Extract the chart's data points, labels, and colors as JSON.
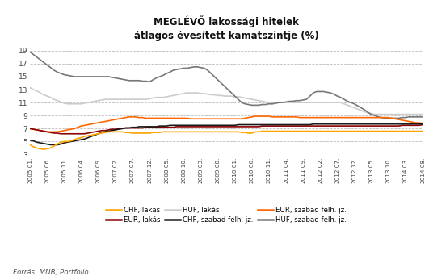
{
  "title_line1": "MEGLÉVŐ lakossági hitelek",
  "title_line2": "átlagos évesített kamatszintje (%)",
  "source": "Forrás: MNB, Portfolio",
  "ylim": [
    3,
    20
  ],
  "yticks": [
    3,
    5,
    7,
    9,
    11,
    13,
    15,
    17,
    19
  ],
  "background_color": "#ffffff",
  "grid_color": "#bbbbbb",
  "xtick_labels": [
    "2005.01.",
    "2005.06.",
    "2005.11.",
    "2006.04.",
    "2006.09.",
    "2007.02.",
    "2007.07.",
    "2007.12.",
    "2008.05.",
    "2008.10.",
    "2009.03.",
    "2009.08.",
    "2010.01.",
    "2010.06.",
    "2010.11.",
    "2011.04.",
    "2011.09.",
    "2012.02.",
    "2012.07.",
    "2012.12.",
    "2013.05.",
    "2013.10.",
    "2014.03.",
    "2014.08."
  ],
  "CHF_lakas_color": "#FFA500",
  "CHF_szabad_color": "#1a1a1a",
  "EUR_lakas_color": "#8B0000",
  "EUR_szabad_color": "#FF6600",
  "HUF_lakas_color": "#cccccc",
  "HUF_szabad_color": "#777777",
  "CHF_lakas": [
    4.5,
    4.2,
    4.0,
    3.9,
    3.8,
    3.9,
    4.0,
    4.3,
    4.6,
    4.9,
    5.0,
    5.0,
    5.1,
    5.3,
    5.5,
    5.6,
    5.8,
    5.9,
    6.0,
    6.1,
    6.2,
    6.3,
    6.4,
    6.5,
    6.5,
    6.5,
    6.5,
    6.5,
    6.4,
    6.4,
    6.3,
    6.3,
    6.3,
    6.3,
    6.3,
    6.3,
    6.4,
    6.4,
    6.4,
    6.5,
    6.5,
    6.5,
    6.5,
    6.5,
    6.5,
    6.5,
    6.5,
    6.5,
    6.5,
    6.5,
    6.5,
    6.5,
    6.5,
    6.5,
    6.5,
    6.5,
    6.5,
    6.5,
    6.5,
    6.5,
    6.5,
    6.5,
    6.4,
    6.4,
    6.3,
    6.3,
    6.5,
    6.5,
    6.6,
    6.6,
    6.6,
    6.6,
    6.6,
    6.6,
    6.6,
    6.6,
    6.6,
    6.6,
    6.6,
    6.6,
    6.6,
    6.6,
    6.6,
    6.6,
    6.6,
    6.6,
    6.6,
    6.6,
    6.6,
    6.6,
    6.6,
    6.6,
    6.6,
    6.6,
    6.6,
    6.6,
    6.6,
    6.6,
    6.6,
    6.6,
    6.6,
    6.6,
    6.6,
    6.6,
    6.6,
    6.6,
    6.6,
    6.6,
    6.6,
    6.6,
    6.6,
    6.6,
    6.6,
    6.6,
    6.6,
    6.6
  ],
  "CHF_szabad": [
    5.2,
    5.1,
    4.9,
    4.8,
    4.7,
    4.6,
    4.5,
    4.5,
    4.5,
    4.6,
    4.8,
    4.9,
    5.0,
    5.1,
    5.2,
    5.3,
    5.4,
    5.6,
    5.8,
    6.0,
    6.2,
    6.4,
    6.5,
    6.6,
    6.7,
    6.8,
    6.9,
    7.0,
    7.1,
    7.1,
    7.2,
    7.2,
    7.3,
    7.3,
    7.3,
    7.3,
    7.3,
    7.3,
    7.4,
    7.4,
    7.4,
    7.5,
    7.5,
    7.5,
    7.5,
    7.5,
    7.5,
    7.5,
    7.5,
    7.5,
    7.5,
    7.5,
    7.5,
    7.5,
    7.5,
    7.5,
    7.5,
    7.5,
    7.5,
    7.5,
    7.5,
    7.6,
    7.6,
    7.6,
    7.6,
    7.6,
    7.6,
    7.6,
    7.6,
    7.6,
    7.6,
    7.6,
    7.6,
    7.6,
    7.6,
    7.6,
    7.6,
    7.6,
    7.6,
    7.6,
    7.6,
    7.6,
    7.6,
    7.7,
    7.7,
    7.7,
    7.7,
    7.7,
    7.7,
    7.7,
    7.7,
    7.7,
    7.7,
    7.7,
    7.7,
    7.7,
    7.7,
    7.7,
    7.7,
    7.7,
    7.7,
    7.7,
    7.7,
    7.7,
    7.7,
    7.7,
    7.7,
    7.7,
    7.7,
    7.7,
    7.7,
    7.7,
    7.7,
    7.7,
    7.7,
    7.7
  ],
  "EUR_lakas": [
    7.0,
    6.9,
    6.8,
    6.7,
    6.6,
    6.5,
    6.4,
    6.3,
    6.3,
    6.2,
    6.2,
    6.2,
    6.2,
    6.2,
    6.2,
    6.2,
    6.2,
    6.3,
    6.4,
    6.5,
    6.6,
    6.7,
    6.7,
    6.8,
    6.9,
    6.9,
    7.0,
    7.0,
    7.1,
    7.1,
    7.1,
    7.1,
    7.1,
    7.1,
    7.2,
    7.2,
    7.2,
    7.2,
    7.2,
    7.2,
    7.2,
    7.2,
    7.2,
    7.3,
    7.3,
    7.3,
    7.3,
    7.3,
    7.3,
    7.3,
    7.3,
    7.3,
    7.3,
    7.3,
    7.3,
    7.3,
    7.3,
    7.3,
    7.3,
    7.3,
    7.3,
    7.3,
    7.3,
    7.3,
    7.3,
    7.3,
    7.3,
    7.3,
    7.4,
    7.4,
    7.4,
    7.4,
    7.4,
    7.4,
    7.4,
    7.4,
    7.4,
    7.4,
    7.4,
    7.4,
    7.4,
    7.4,
    7.4,
    7.4,
    7.4,
    7.4,
    7.4,
    7.4,
    7.4,
    7.4,
    7.4,
    7.4,
    7.4,
    7.4,
    7.4,
    7.4,
    7.4,
    7.4,
    7.4,
    7.4,
    7.4,
    7.4,
    7.4,
    7.4,
    7.4,
    7.4,
    7.4,
    7.4,
    7.4,
    7.5,
    7.5,
    7.5,
    7.5,
    7.5,
    7.5,
    7.6
  ],
  "EUR_szabad": [
    7.0,
    6.9,
    6.8,
    6.7,
    6.6,
    6.5,
    6.5,
    6.5,
    6.5,
    6.6,
    6.7,
    6.8,
    6.9,
    7.0,
    7.2,
    7.4,
    7.5,
    7.6,
    7.7,
    7.8,
    7.9,
    8.0,
    8.1,
    8.2,
    8.3,
    8.4,
    8.5,
    8.6,
    8.7,
    8.8,
    8.8,
    8.8,
    8.7,
    8.7,
    8.6,
    8.6,
    8.6,
    8.6,
    8.6,
    8.6,
    8.6,
    8.6,
    8.6,
    8.6,
    8.6,
    8.6,
    8.6,
    8.5,
    8.5,
    8.5,
    8.5,
    8.5,
    8.5,
    8.5,
    8.5,
    8.5,
    8.5,
    8.5,
    8.5,
    8.5,
    8.5,
    8.5,
    8.5,
    8.6,
    8.7,
    8.8,
    8.9,
    8.9,
    8.9,
    8.9,
    8.9,
    8.8,
    8.8,
    8.8,
    8.8,
    8.8,
    8.8,
    8.8,
    8.8,
    8.7,
    8.7,
    8.7,
    8.7,
    8.7,
    8.7,
    8.7,
    8.7,
    8.7,
    8.7,
    8.7,
    8.7,
    8.7,
    8.7,
    8.7,
    8.7,
    8.7,
    8.7,
    8.7,
    8.7,
    8.7,
    8.7,
    8.7,
    8.7,
    8.7,
    8.7,
    8.7,
    8.6,
    8.5,
    8.4,
    8.3,
    8.2,
    8.1,
    8.0,
    7.9,
    7.9,
    7.8
  ],
  "HUF_lakas": [
    13.3,
    13.0,
    12.8,
    12.5,
    12.2,
    12.0,
    11.8,
    11.5,
    11.3,
    11.1,
    10.9,
    10.8,
    10.8,
    10.8,
    10.8,
    10.8,
    10.9,
    11.0,
    11.1,
    11.2,
    11.3,
    11.4,
    11.5,
    11.5,
    11.5,
    11.5,
    11.5,
    11.5,
    11.5,
    11.5,
    11.5,
    11.5,
    11.5,
    11.5,
    11.5,
    11.6,
    11.7,
    11.8,
    11.8,
    11.8,
    11.9,
    12.0,
    12.1,
    12.2,
    12.3,
    12.4,
    12.5,
    12.5,
    12.5,
    12.5,
    12.4,
    12.4,
    12.3,
    12.2,
    12.2,
    12.1,
    12.1,
    12.0,
    12.0,
    12.0,
    11.9,
    11.9,
    11.8,
    11.7,
    11.6,
    11.5,
    11.4,
    11.3,
    11.2,
    11.1,
    11.0,
    11.0,
    11.0,
    11.0,
    11.0,
    11.0,
    11.0,
    11.0,
    11.0,
    11.0,
    11.0,
    11.0,
    11.0,
    11.0,
    11.0,
    11.0,
    11.0,
    11.0,
    11.0,
    11.0,
    11.0,
    11.0,
    10.8,
    10.6,
    10.4,
    10.2,
    10.0,
    9.8,
    9.6,
    9.4,
    9.3,
    9.2,
    9.2,
    9.2,
    9.2,
    9.2,
    9.2,
    9.2,
    9.2,
    9.2,
    9.2,
    9.2,
    9.2,
    9.2,
    9.2,
    9.2
  ],
  "HUF_szabad": [
    18.8,
    18.4,
    18.0,
    17.6,
    17.2,
    16.8,
    16.4,
    16.0,
    15.7,
    15.5,
    15.3,
    15.2,
    15.1,
    15.0,
    15.0,
    15.0,
    15.0,
    15.0,
    15.0,
    15.0,
    15.0,
    15.0,
    15.0,
    15.0,
    14.9,
    14.8,
    14.7,
    14.6,
    14.5,
    14.4,
    14.4,
    14.4,
    14.4,
    14.3,
    14.3,
    14.2,
    14.5,
    14.8,
    15.0,
    15.2,
    15.5,
    15.7,
    16.0,
    16.1,
    16.2,
    16.3,
    16.3,
    16.4,
    16.5,
    16.5,
    16.4,
    16.3,
    16.0,
    15.5,
    15.0,
    14.5,
    14.0,
    13.5,
    13.0,
    12.5,
    12.0,
    11.5,
    11.0,
    10.8,
    10.7,
    10.6,
    10.6,
    10.6,
    10.7,
    10.7,
    10.8,
    10.8,
    10.9,
    11.0,
    11.0,
    11.1,
    11.2,
    11.2,
    11.3,
    11.3,
    11.4,
    11.5,
    12.0,
    12.5,
    12.7,
    12.7,
    12.7,
    12.6,
    12.5,
    12.3,
    12.0,
    11.8,
    11.5,
    11.2,
    11.0,
    10.8,
    10.5,
    10.2,
    9.9,
    9.5,
    9.2,
    9.0,
    8.8,
    8.7,
    8.6,
    8.6,
    8.6,
    8.6,
    8.6,
    8.7,
    8.7,
    8.8,
    8.8,
    8.8,
    8.8,
    8.8
  ]
}
